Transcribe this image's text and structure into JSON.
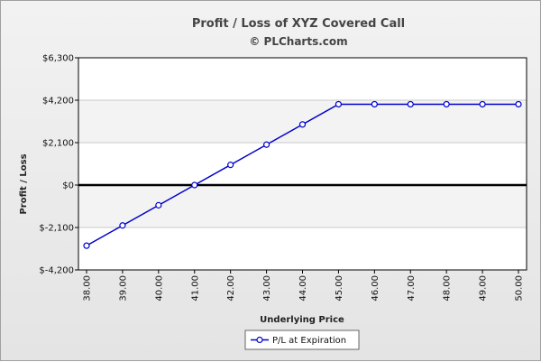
{
  "chart_data": {
    "type": "line",
    "title": "Profit / Loss of XYZ Covered Call",
    "subtitle": "© PLCharts.com",
    "xlabel": "Underlying Price",
    "ylabel": "Profit / Loss",
    "ylim": [
      -4200,
      6300
    ],
    "y_ticks": [
      6300,
      4200,
      2100,
      0,
      -2100,
      -4200
    ],
    "y_tick_labels": [
      "$6,300",
      "$4,200",
      "$2,100",
      "$0",
      "$-2,100",
      "$-4,200"
    ],
    "x_tick_labels": [
      "38.00",
      "39.00",
      "40.00",
      "41.00",
      "42.00",
      "43.00",
      "44.00",
      "45.00",
      "46.00",
      "47.00",
      "48.00",
      "49.00",
      "50.00"
    ],
    "x": [
      38,
      39,
      40,
      41,
      42,
      43,
      44,
      45,
      46,
      47,
      48,
      49,
      50
    ],
    "series": [
      {
        "name": "P/L at Expiration",
        "color": "#0000cc",
        "values": [
          -3000,
          -2000,
          -1000,
          0,
          1000,
          2000,
          3000,
          4000,
          4000,
          4000,
          4000,
          4000,
          4000
        ]
      }
    ],
    "grid": true,
    "zero_line": true,
    "legend_position": "bottom-center"
  }
}
